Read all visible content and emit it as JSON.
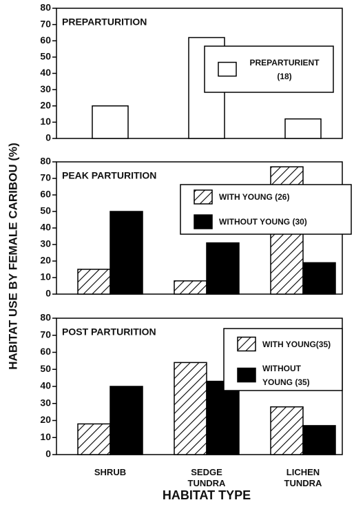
{
  "ylabel": "HABITAT USE BY FEMALE CARIBOU (%)",
  "xlabel": "HABITAT TYPE",
  "categories": [
    "SHRUB",
    "SEDGE TUNDRA",
    "LICHEN TUNDRA"
  ],
  "chart_data": [
    {
      "type": "bar",
      "title": "PREPARTURITION",
      "series": [
        {
          "name": "PREPARTURIENT (18)",
          "color": "#ffffff",
          "values": [
            20,
            62,
            12
          ]
        }
      ],
      "ylim": [
        0,
        80
      ],
      "yticks": [
        0,
        10,
        20,
        30,
        40,
        50,
        60,
        70,
        80
      ],
      "legend": "upper right"
    },
    {
      "type": "bar",
      "title": "PEAK  PARTURITION",
      "series": [
        {
          "name": "WITH YOUNG (26)",
          "color": "#ffffff",
          "pattern": "hatch",
          "values": [
            15,
            8,
            77
          ]
        },
        {
          "name": "WITHOUT YOUNG (30)",
          "color": "#000000",
          "values": [
            50,
            31,
            19
          ]
        }
      ],
      "ylim": [
        0,
        80
      ],
      "yticks": [
        0,
        10,
        20,
        30,
        40,
        50,
        60,
        70,
        80
      ],
      "legend": "upper right"
    },
    {
      "type": "bar",
      "title": "POST PARTURITION",
      "series": [
        {
          "name": "WITH YOUNG(35)",
          "color": "#ffffff",
          "pattern": "hatch",
          "values": [
            18,
            54,
            28
          ]
        },
        {
          "name": "WITHOUT YOUNG (35)",
          "color": "#000000",
          "values": [
            40,
            43,
            17
          ]
        }
      ],
      "ylim": [
        0,
        80
      ],
      "yticks": [
        0,
        10,
        20,
        30,
        40,
        50,
        60,
        70,
        80
      ],
      "legend": "upper right"
    }
  ]
}
